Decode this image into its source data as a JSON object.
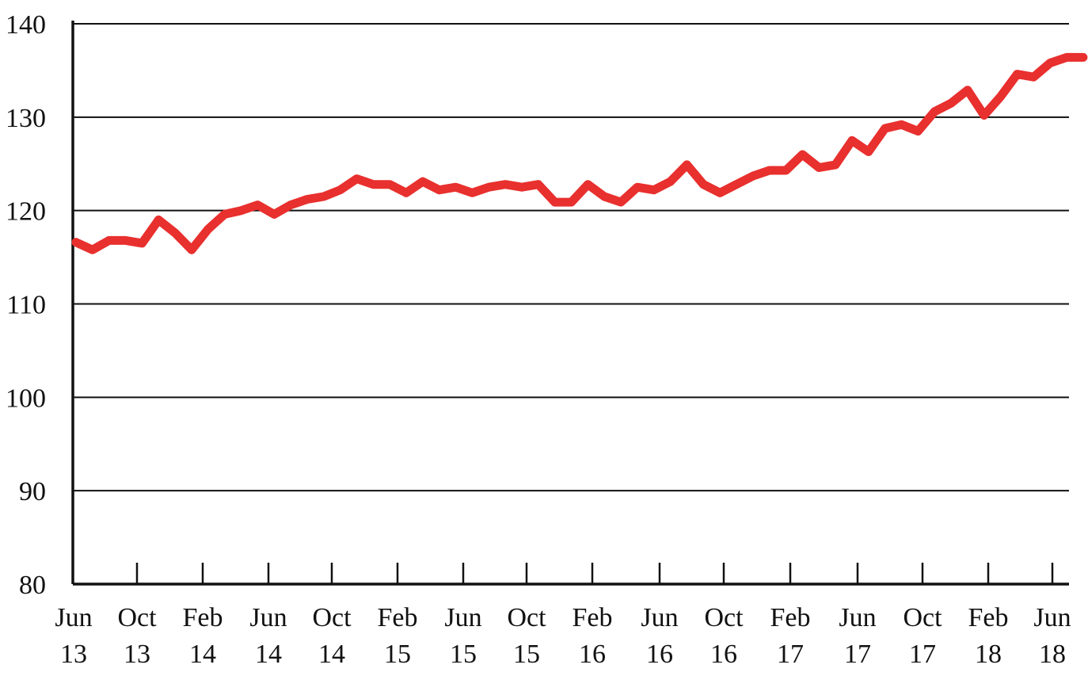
{
  "chart_data": {
    "type": "line",
    "title": "",
    "xlabel": "",
    "ylabel": "",
    "ylim": [
      80,
      140
    ],
    "yticks": [
      80,
      90,
      100,
      110,
      120,
      130,
      140
    ],
    "grid": true,
    "xtick_labels": [
      [
        "Jun",
        "13"
      ],
      [
        "Oct",
        "13"
      ],
      [
        "Feb",
        "14"
      ],
      [
        "Jun",
        "14"
      ],
      [
        "Oct",
        "14"
      ],
      [
        "Feb",
        "15"
      ],
      [
        "Jun",
        "15"
      ],
      [
        "Oct",
        "15"
      ],
      [
        "Feb",
        "16"
      ],
      [
        "Jun",
        "16"
      ],
      [
        "Oct",
        "16"
      ],
      [
        "Feb",
        "17"
      ],
      [
        "Jun",
        "17"
      ],
      [
        "Oct",
        "17"
      ],
      [
        "Feb",
        "18"
      ],
      [
        "Jun",
        "18"
      ]
    ],
    "series": [
      {
        "color": "#e8302e",
        "x": [
          "2013-06",
          "2013-07",
          "2013-08",
          "2013-09",
          "2013-10",
          "2013-11",
          "2013-12",
          "2014-01",
          "2014-02",
          "2014-03",
          "2014-04",
          "2014-05",
          "2014-06",
          "2014-07",
          "2014-08",
          "2014-09",
          "2014-10",
          "2014-11",
          "2014-12",
          "2015-01",
          "2015-02",
          "2015-03",
          "2015-04",
          "2015-05",
          "2015-06",
          "2015-07",
          "2015-08",
          "2015-09",
          "2015-10",
          "2015-11",
          "2015-12",
          "2016-01",
          "2016-02",
          "2016-03",
          "2016-04",
          "2016-05",
          "2016-06",
          "2016-07",
          "2016-08",
          "2016-09",
          "2016-10",
          "2016-11",
          "2016-12",
          "2017-01",
          "2017-02",
          "2017-03",
          "2017-04",
          "2017-05",
          "2017-06",
          "2017-07",
          "2017-08",
          "2017-09",
          "2017-10",
          "2017-11",
          "2017-12",
          "2018-01",
          "2018-02",
          "2018-03",
          "2018-04",
          "2018-05",
          "2018-06",
          "2018-07"
        ],
        "values": [
          116.6,
          115.8,
          116.8,
          116.8,
          116.5,
          119.0,
          117.6,
          115.8,
          118.0,
          119.6,
          120.0,
          120.6,
          119.6,
          120.6,
          121.2,
          121.5,
          122.2,
          123.4,
          122.8,
          122.8,
          121.9,
          123.1,
          122.2,
          122.5,
          121.9,
          122.5,
          122.8,
          122.5,
          122.8,
          120.9,
          120.9,
          122.8,
          121.5,
          120.9,
          122.5,
          122.2,
          123.1,
          124.9,
          122.8,
          121.9,
          122.8,
          123.7,
          124.3,
          124.3,
          126.0,
          124.6,
          124.9,
          127.5,
          126.3,
          128.8,
          129.2,
          128.5,
          130.6,
          131.5,
          132.9,
          130.2,
          132.2,
          134.6,
          134.3,
          135.8,
          136.4,
          136.4
        ]
      }
    ]
  }
}
